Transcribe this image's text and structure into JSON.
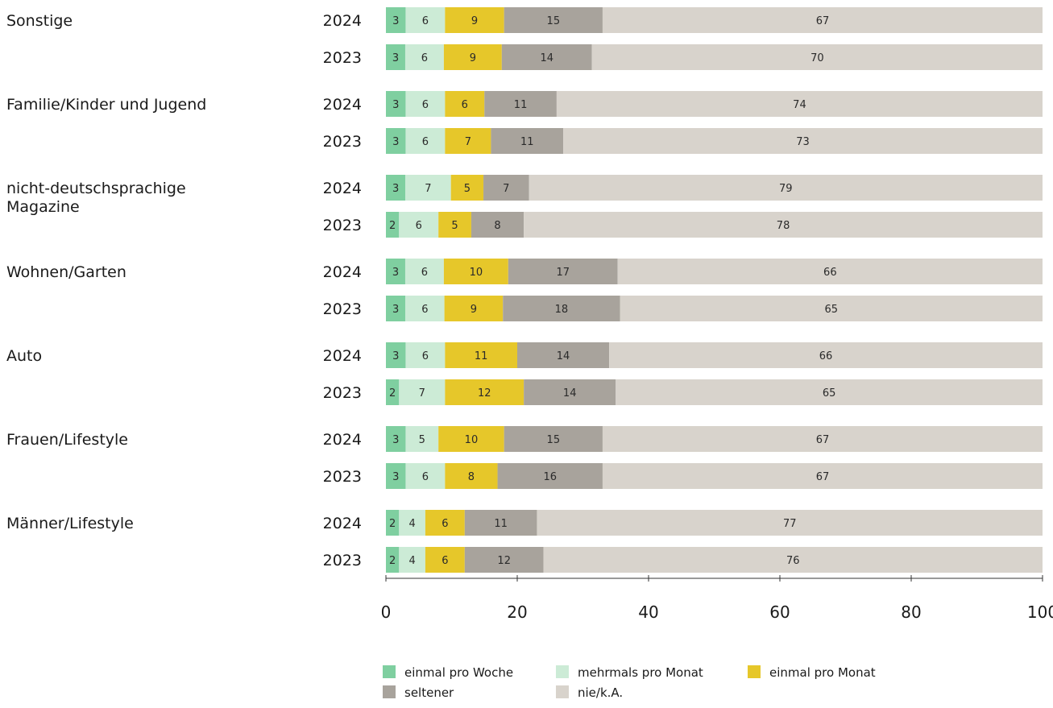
{
  "chart_data": {
    "type": "bar",
    "orientation": "horizontal",
    "stacked": true,
    "title": "",
    "xlabel": "",
    "ylabel": "",
    "xlim": [
      0,
      100
    ],
    "x_ticks": [
      0,
      20,
      40,
      60,
      80,
      100
    ],
    "grid": false,
    "legend_position": "bottom",
    "segments": [
      {
        "name": "einmal pro Woche",
        "color": "#7fcfa0"
      },
      {
        "name": "mehrmals pro Monat",
        "color": "#ccebd6"
      },
      {
        "name": "einmal pro Monat",
        "color": "#e6c72a"
      },
      {
        "name": "seltener",
        "color": "#a8a39c"
      },
      {
        "name": "nie/k.A.",
        "color": "#d8d3cc"
      }
    ],
    "groups": [
      {
        "category": [
          "Sonstige"
        ],
        "rows": [
          {
            "year": "2024",
            "values": [
              3,
              6,
              9,
              15,
              67
            ]
          },
          {
            "year": "2023",
            "values": [
              3,
              6,
              9,
              14,
              70
            ]
          }
        ]
      },
      {
        "category": [
          "Familie/Kinder und Jugend"
        ],
        "rows": [
          {
            "year": "2024",
            "values": [
              3,
              6,
              6,
              11,
              74
            ]
          },
          {
            "year": "2023",
            "values": [
              3,
              6,
              7,
              11,
              73
            ]
          }
        ]
      },
      {
        "category": [
          "nicht-deutschsprachige",
          "Magazine"
        ],
        "rows": [
          {
            "year": "2024",
            "values": [
              3,
              7,
              5,
              7,
              79
            ]
          },
          {
            "year": "2023",
            "values": [
              2,
              6,
              5,
              8,
              78
            ]
          }
        ]
      },
      {
        "category": [
          "Wohnen/Garten"
        ],
        "rows": [
          {
            "year": "2024",
            "values": [
              3,
              6,
              10,
              17,
              66
            ]
          },
          {
            "year": "2023",
            "values": [
              3,
              6,
              9,
              18,
              65
            ]
          }
        ]
      },
      {
        "category": [
          "Auto"
        ],
        "rows": [
          {
            "year": "2024",
            "values": [
              3,
              6,
              11,
              14,
              66
            ]
          },
          {
            "year": "2023",
            "values": [
              2,
              7,
              12,
              14,
              65
            ]
          }
        ]
      },
      {
        "category": [
          "Frauen/Lifestyle"
        ],
        "rows": [
          {
            "year": "2024",
            "values": [
              3,
              5,
              10,
              15,
              67
            ]
          },
          {
            "year": "2023",
            "values": [
              3,
              6,
              8,
              16,
              67
            ]
          }
        ]
      },
      {
        "category": [
          "Männer/Lifestyle"
        ],
        "rows": [
          {
            "year": "2024",
            "values": [
              2,
              4,
              6,
              11,
              77
            ]
          },
          {
            "year": "2023",
            "values": [
              2,
              4,
              6,
              12,
              76
            ]
          }
        ]
      }
    ]
  }
}
